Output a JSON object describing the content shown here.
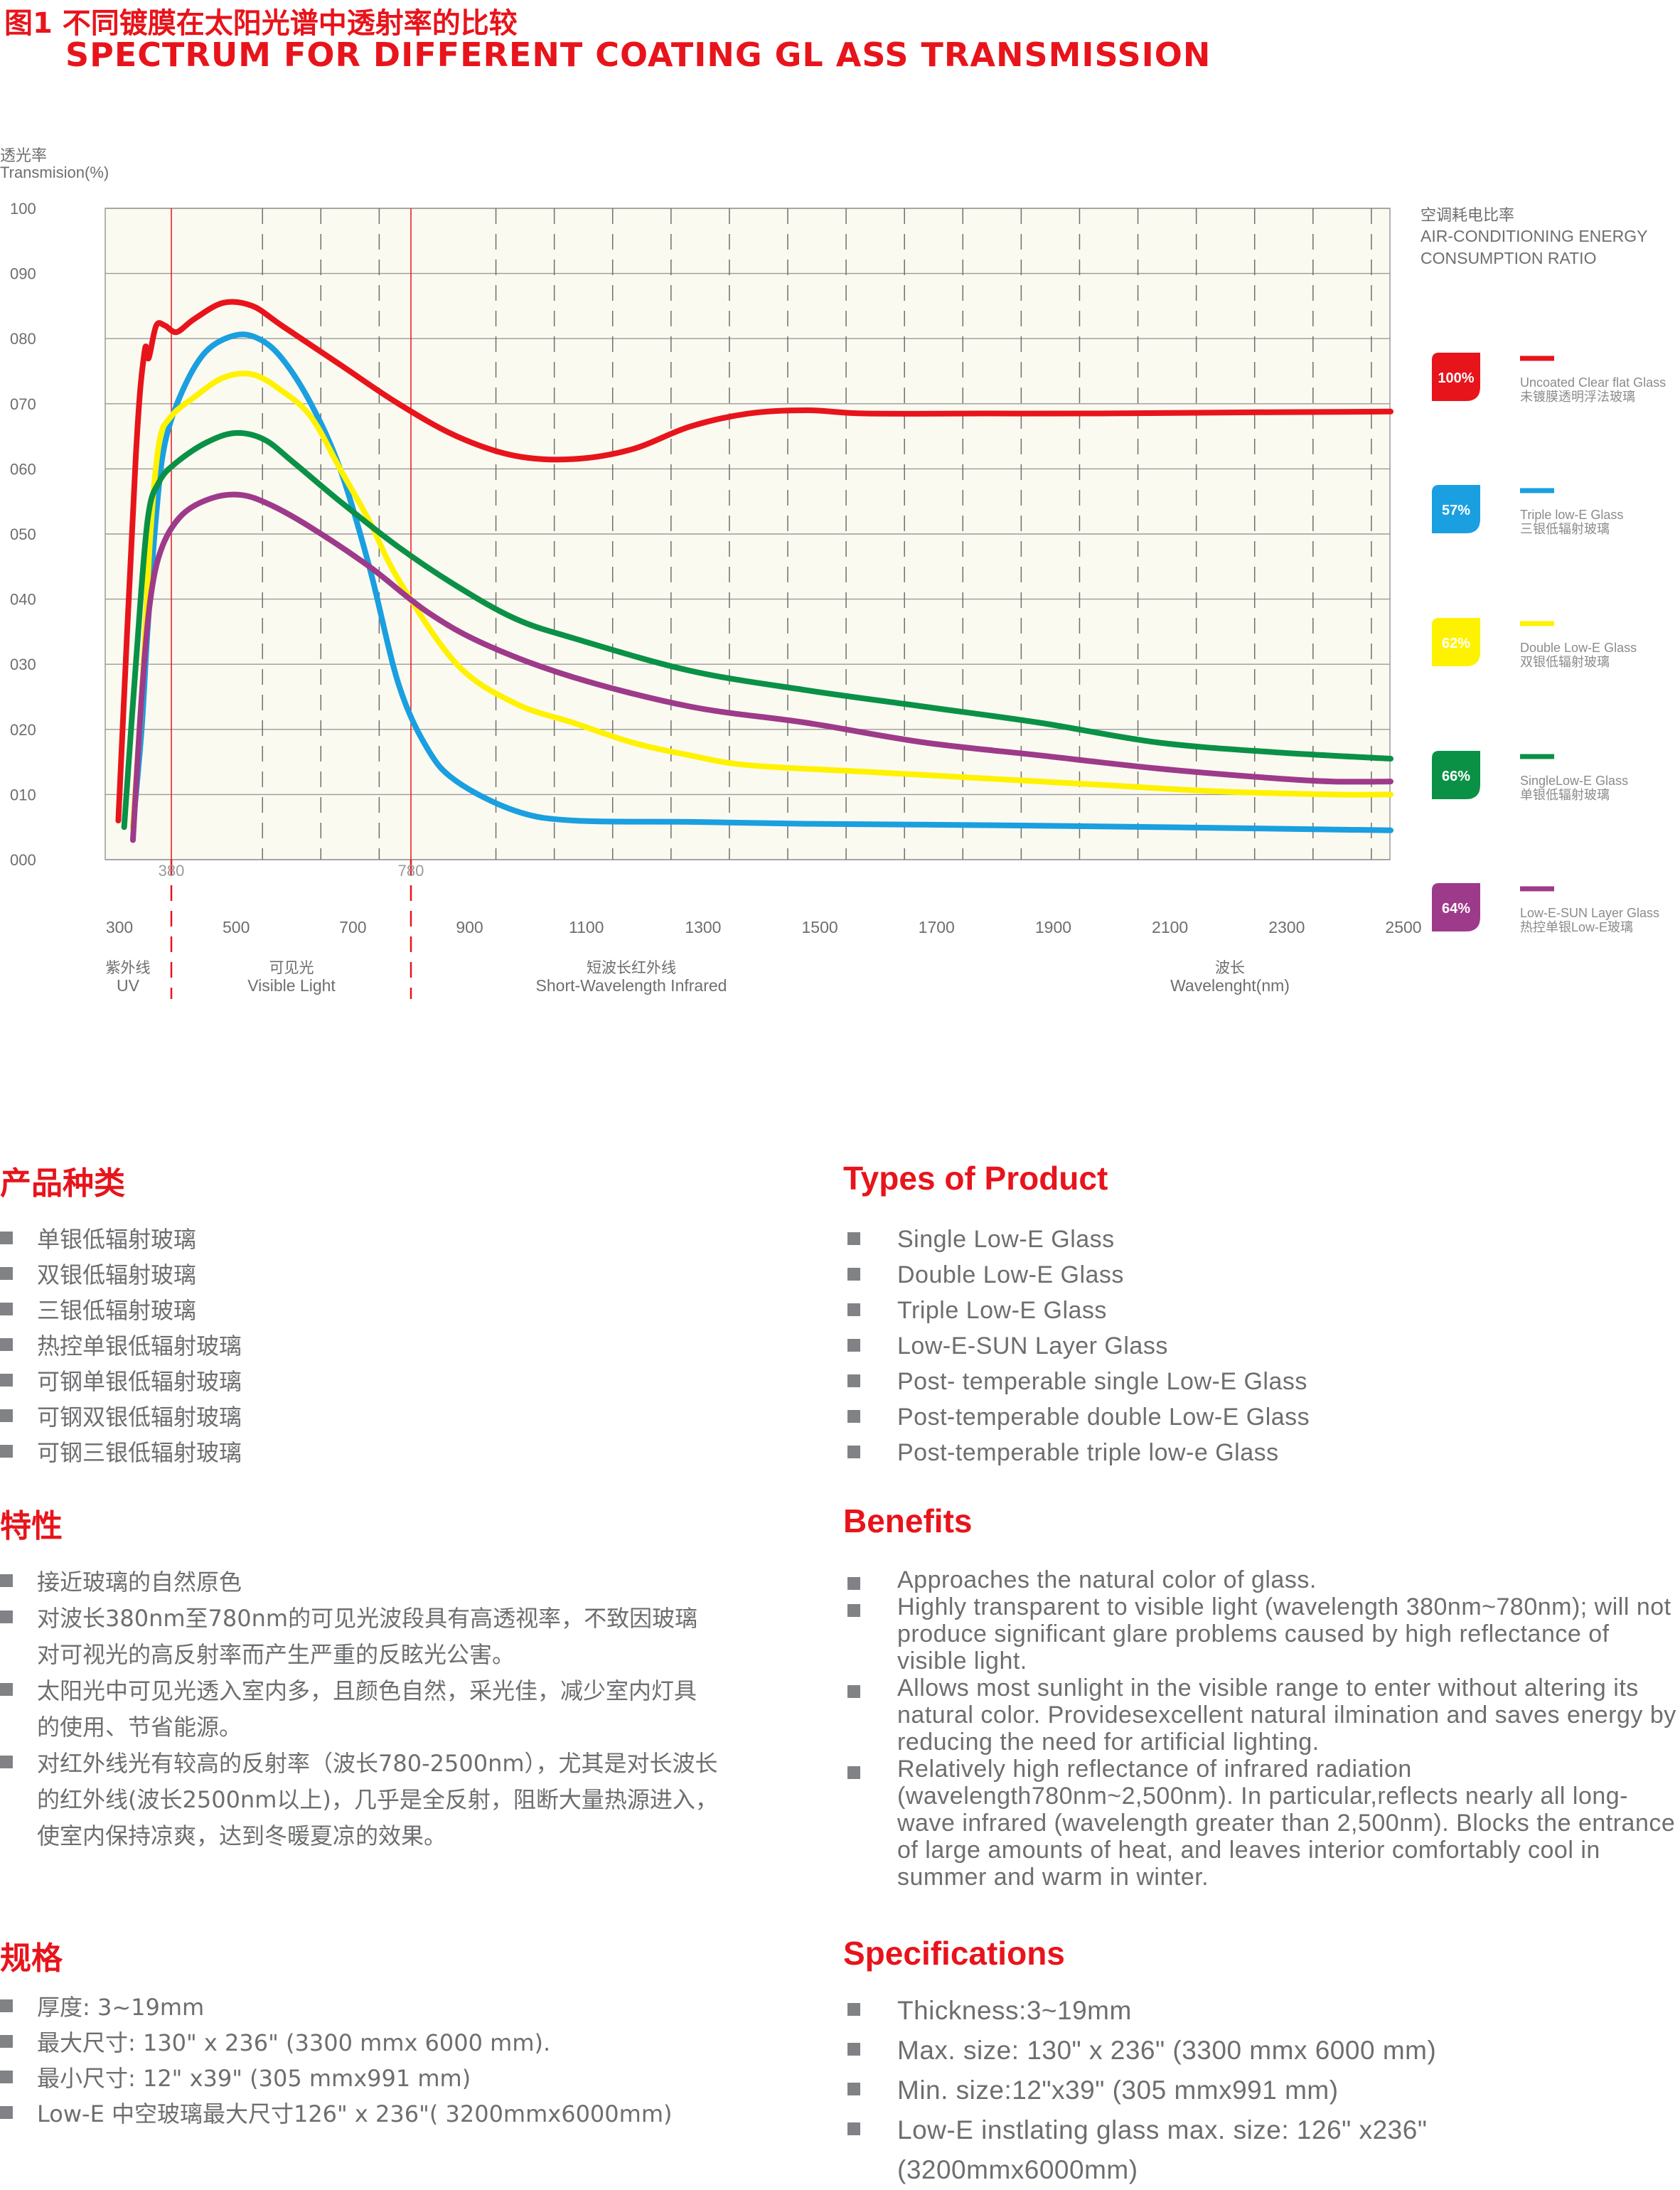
{
  "title": {
    "cn": "图1 不同镀膜在太阳光谱中透射率的比较",
    "en": "SPECTRUM FOR DIFFERENT COATING GL ASS TRANSMISSION"
  },
  "colors": {
    "accent": "#e8141b",
    "text": "#6d6e70",
    "grid": "#8a8a8a",
    "plot_bg": "#fbfaf1"
  },
  "chart_data": {
    "type": "line",
    "ylabel_cn": "透光率",
    "ylabel_en": "Transmision(%)",
    "ylim": [
      0,
      100
    ],
    "y_ticks": [
      "000",
      "010",
      "020",
      "030",
      "040",
      "050",
      "060",
      "070",
      "080",
      "090",
      "100"
    ],
    "xlim": [
      300,
      2500
    ],
    "x_ticks": [
      300,
      500,
      700,
      900,
      1100,
      1300,
      1500,
      1700,
      1900,
      2100,
      2300,
      2500
    ],
    "xlabel_cn": "波长",
    "xlabel_en": "Wavelenght(nm)",
    "markers": [
      380,
      780
    ],
    "regions": [
      {
        "cn": "紫外线",
        "en": "UV"
      },
      {
        "cn": "可见光",
        "en": "Visible Light"
      },
      {
        "cn": "短波长红外线",
        "en": "Short-Wavelength Infrared"
      }
    ],
    "legend_title": {
      "cn": "空调耗电比率",
      "en1": "AIR-CONDITIONING ENERGY",
      "en2": "CONSUMPTION RATIO"
    },
    "grid": true,
    "legend_position": "right",
    "series": [
      {
        "name": "Uncoated Clear flat Glass",
        "name_cn": "未镀膜透明浮法玻璃",
        "ratio": "100%",
        "color": "#e8141b",
        "points": [
          [
            320,
            6
          ],
          [
            350,
            62
          ],
          [
            365,
            78
          ],
          [
            372,
            77
          ],
          [
            385,
            82
          ],
          [
            400,
            82
          ],
          [
            420,
            81
          ],
          [
            450,
            83
          ],
          [
            500,
            85.5
          ],
          [
            550,
            85
          ],
          [
            600,
            82
          ],
          [
            700,
            76
          ],
          [
            800,
            70
          ],
          [
            900,
            65
          ],
          [
            1000,
            62
          ],
          [
            1100,
            61.5
          ],
          [
            1200,
            63
          ],
          [
            1300,
            66.5
          ],
          [
            1400,
            68.5
          ],
          [
            1500,
            69
          ],
          [
            1600,
            68.5
          ],
          [
            1800,
            68.5
          ],
          [
            2000,
            68.5
          ],
          [
            2300,
            68.7
          ],
          [
            2500,
            68.8
          ]
        ]
      },
      {
        "name": "Triple low-E Glass",
        "name_cn": "三银低辐射玻璃",
        "ratio": "57%",
        "color": "#1a9fe0",
        "points": [
          [
            345,
            5
          ],
          [
            360,
            20
          ],
          [
            370,
            35
          ],
          [
            385,
            53
          ],
          [
            400,
            64
          ],
          [
            430,
            72
          ],
          [
            470,
            78
          ],
          [
            520,
            80.5
          ],
          [
            560,
            80
          ],
          [
            600,
            77
          ],
          [
            650,
            70
          ],
          [
            700,
            60
          ],
          [
            750,
            45
          ],
          [
            800,
            27
          ],
          [
            850,
            17
          ],
          [
            900,
            12
          ],
          [
            1000,
            7.5
          ],
          [
            1100,
            6
          ],
          [
            1300,
            5.8
          ],
          [
            1500,
            5.5
          ],
          [
            1800,
            5.3
          ],
          [
            2100,
            5
          ],
          [
            2500,
            4.5
          ]
        ]
      },
      {
        "name": "Double Low-E Glass",
        "name_cn": "双银低辐射玻璃",
        "ratio": "62%",
        "color": "#fff200",
        "points": [
          [
            345,
            5
          ],
          [
            360,
            25
          ],
          [
            375,
            50
          ],
          [
            390,
            64
          ],
          [
            410,
            68
          ],
          [
            450,
            71
          ],
          [
            500,
            74
          ],
          [
            550,
            74.5
          ],
          [
            600,
            72
          ],
          [
            650,
            68
          ],
          [
            700,
            60
          ],
          [
            750,
            52
          ],
          [
            800,
            43
          ],
          [
            900,
            30
          ],
          [
            1000,
            24
          ],
          [
            1100,
            21
          ],
          [
            1200,
            18
          ],
          [
            1300,
            16
          ],
          [
            1400,
            14.5
          ],
          [
            1600,
            13.5
          ],
          [
            1800,
            12.5
          ],
          [
            2000,
            11.5
          ],
          [
            2200,
            10.5
          ],
          [
            2400,
            10
          ],
          [
            2500,
            10
          ]
        ]
      },
      {
        "name": "SingleLow-E Glass",
        "name_cn": "单银低辐射玻璃",
        "ratio": "66%",
        "color": "#0a9146",
        "points": [
          [
            330,
            5
          ],
          [
            350,
            30
          ],
          [
            370,
            52
          ],
          [
            390,
            58
          ],
          [
            420,
            61
          ],
          [
            470,
            64
          ],
          [
            520,
            65.5
          ],
          [
            570,
            64.5
          ],
          [
            620,
            61
          ],
          [
            700,
            55
          ],
          [
            800,
            48
          ],
          [
            900,
            42
          ],
          [
            1000,
            37
          ],
          [
            1100,
            34
          ],
          [
            1300,
            29
          ],
          [
            1500,
            26
          ],
          [
            1700,
            23.5
          ],
          [
            1900,
            21
          ],
          [
            2100,
            18
          ],
          [
            2300,
            16.5
          ],
          [
            2500,
            15.5
          ]
        ]
      },
      {
        "name": "Low-E-SUN Layer Glass",
        "name_cn": "热控单银Low-E玻璃",
        "ratio": "64%",
        "color": "#9e3a8a",
        "points": [
          [
            345,
            3
          ],
          [
            360,
            25
          ],
          [
            375,
            40
          ],
          [
            395,
            48
          ],
          [
            430,
            53
          ],
          [
            480,
            55.5
          ],
          [
            530,
            56
          ],
          [
            580,
            54.5
          ],
          [
            650,
            51
          ],
          [
            750,
            45
          ],
          [
            850,
            38
          ],
          [
            950,
            33
          ],
          [
            1100,
            28
          ],
          [
            1300,
            23.5
          ],
          [
            1500,
            21
          ],
          [
            1700,
            18
          ],
          [
            1900,
            16
          ],
          [
            2100,
            14
          ],
          [
            2300,
            12.5
          ],
          [
            2400,
            12
          ],
          [
            2500,
            12
          ]
        ]
      }
    ]
  },
  "left": {
    "types_title": "产品种类",
    "types": [
      "单银低辐射玻璃",
      "双银低辐射玻璃",
      "三银低辐射玻璃",
      "热控单银低辐射玻璃",
      "可钢单银低辐射玻璃",
      "可钢双银低辐射玻璃",
      "可钢三银低辐射玻璃"
    ],
    "benefits_title": "特性",
    "benefits": [
      "接近玻璃的自然原色",
      "对波长380nm至780nm的可见光波段具有高透视率，不致因玻璃对可视光的高反射率而产生严重的反眩光公害。",
      "太阳光中可见光透入室内多，且颜色自然，采光佳，减少室内灯具的使用、节省能源。",
      "对红外线光有较高的反射率（波长780-2500nm），尤其是对长波长的红外线(波长2500nm以上)，几乎是全反射，阻断大量热源进入，使室内保持凉爽，达到冬暖夏凉的效果。"
    ],
    "specs_title": "规格",
    "specs": [
      "厚度: 3~19mm",
      "最大尺寸: 130\" x 236\" (3300 mmx 6000 mm).",
      "最小尺寸: 12\" x39\" (305 mmx991 mm)",
      "Low-E 中空玻璃最大尺寸126\" x 236\"( 3200mmx6000mm)"
    ]
  },
  "right": {
    "types_title": "Types of Product",
    "types": [
      "Single Low-E Glass",
      "Double Low-E Glass",
      "Triple Low-E Glass",
      "Low-E-SUN Layer Glass",
      "Post- temperable single Low-E Glass",
      "Post-temperable double Low-E Glass",
      "Post-temperable triple low-e Glass"
    ],
    "benefits_title": "Benefits",
    "benefits": [
      "Approaches the natural color of glass.",
      "Highly transparent to visible light (wavelength 380nm~780nm); will not produce significant glare problems caused by high reflectance of visible light.",
      "Allows most sunlight in the visible range to enter without altering its natural color. Providesexcellent natural ilmination and saves energy by reducing the need for artificial lighting.",
      "Relatively high reflectance of infrared radiation (wavelength780nm~2,500nm). In particular,reflects nearly all long- wave infrared (wavelength greater than 2,500nm). Blocks the entrance  of large amounts of heat, and leaves interior comfortably cool in summer and warm in winter."
    ],
    "specs_title": "Specifications",
    "specs": [
      "Thickness:3~19mm",
      "Max. size: 130\" x 236\" (3300 mmx 6000 mm)",
      "Min. size:12\"x39\" (305 mmx991 mm)",
      "Low-E  instlating glass max. size: 126\" x236\" (3200mmx6000mm)"
    ]
  }
}
